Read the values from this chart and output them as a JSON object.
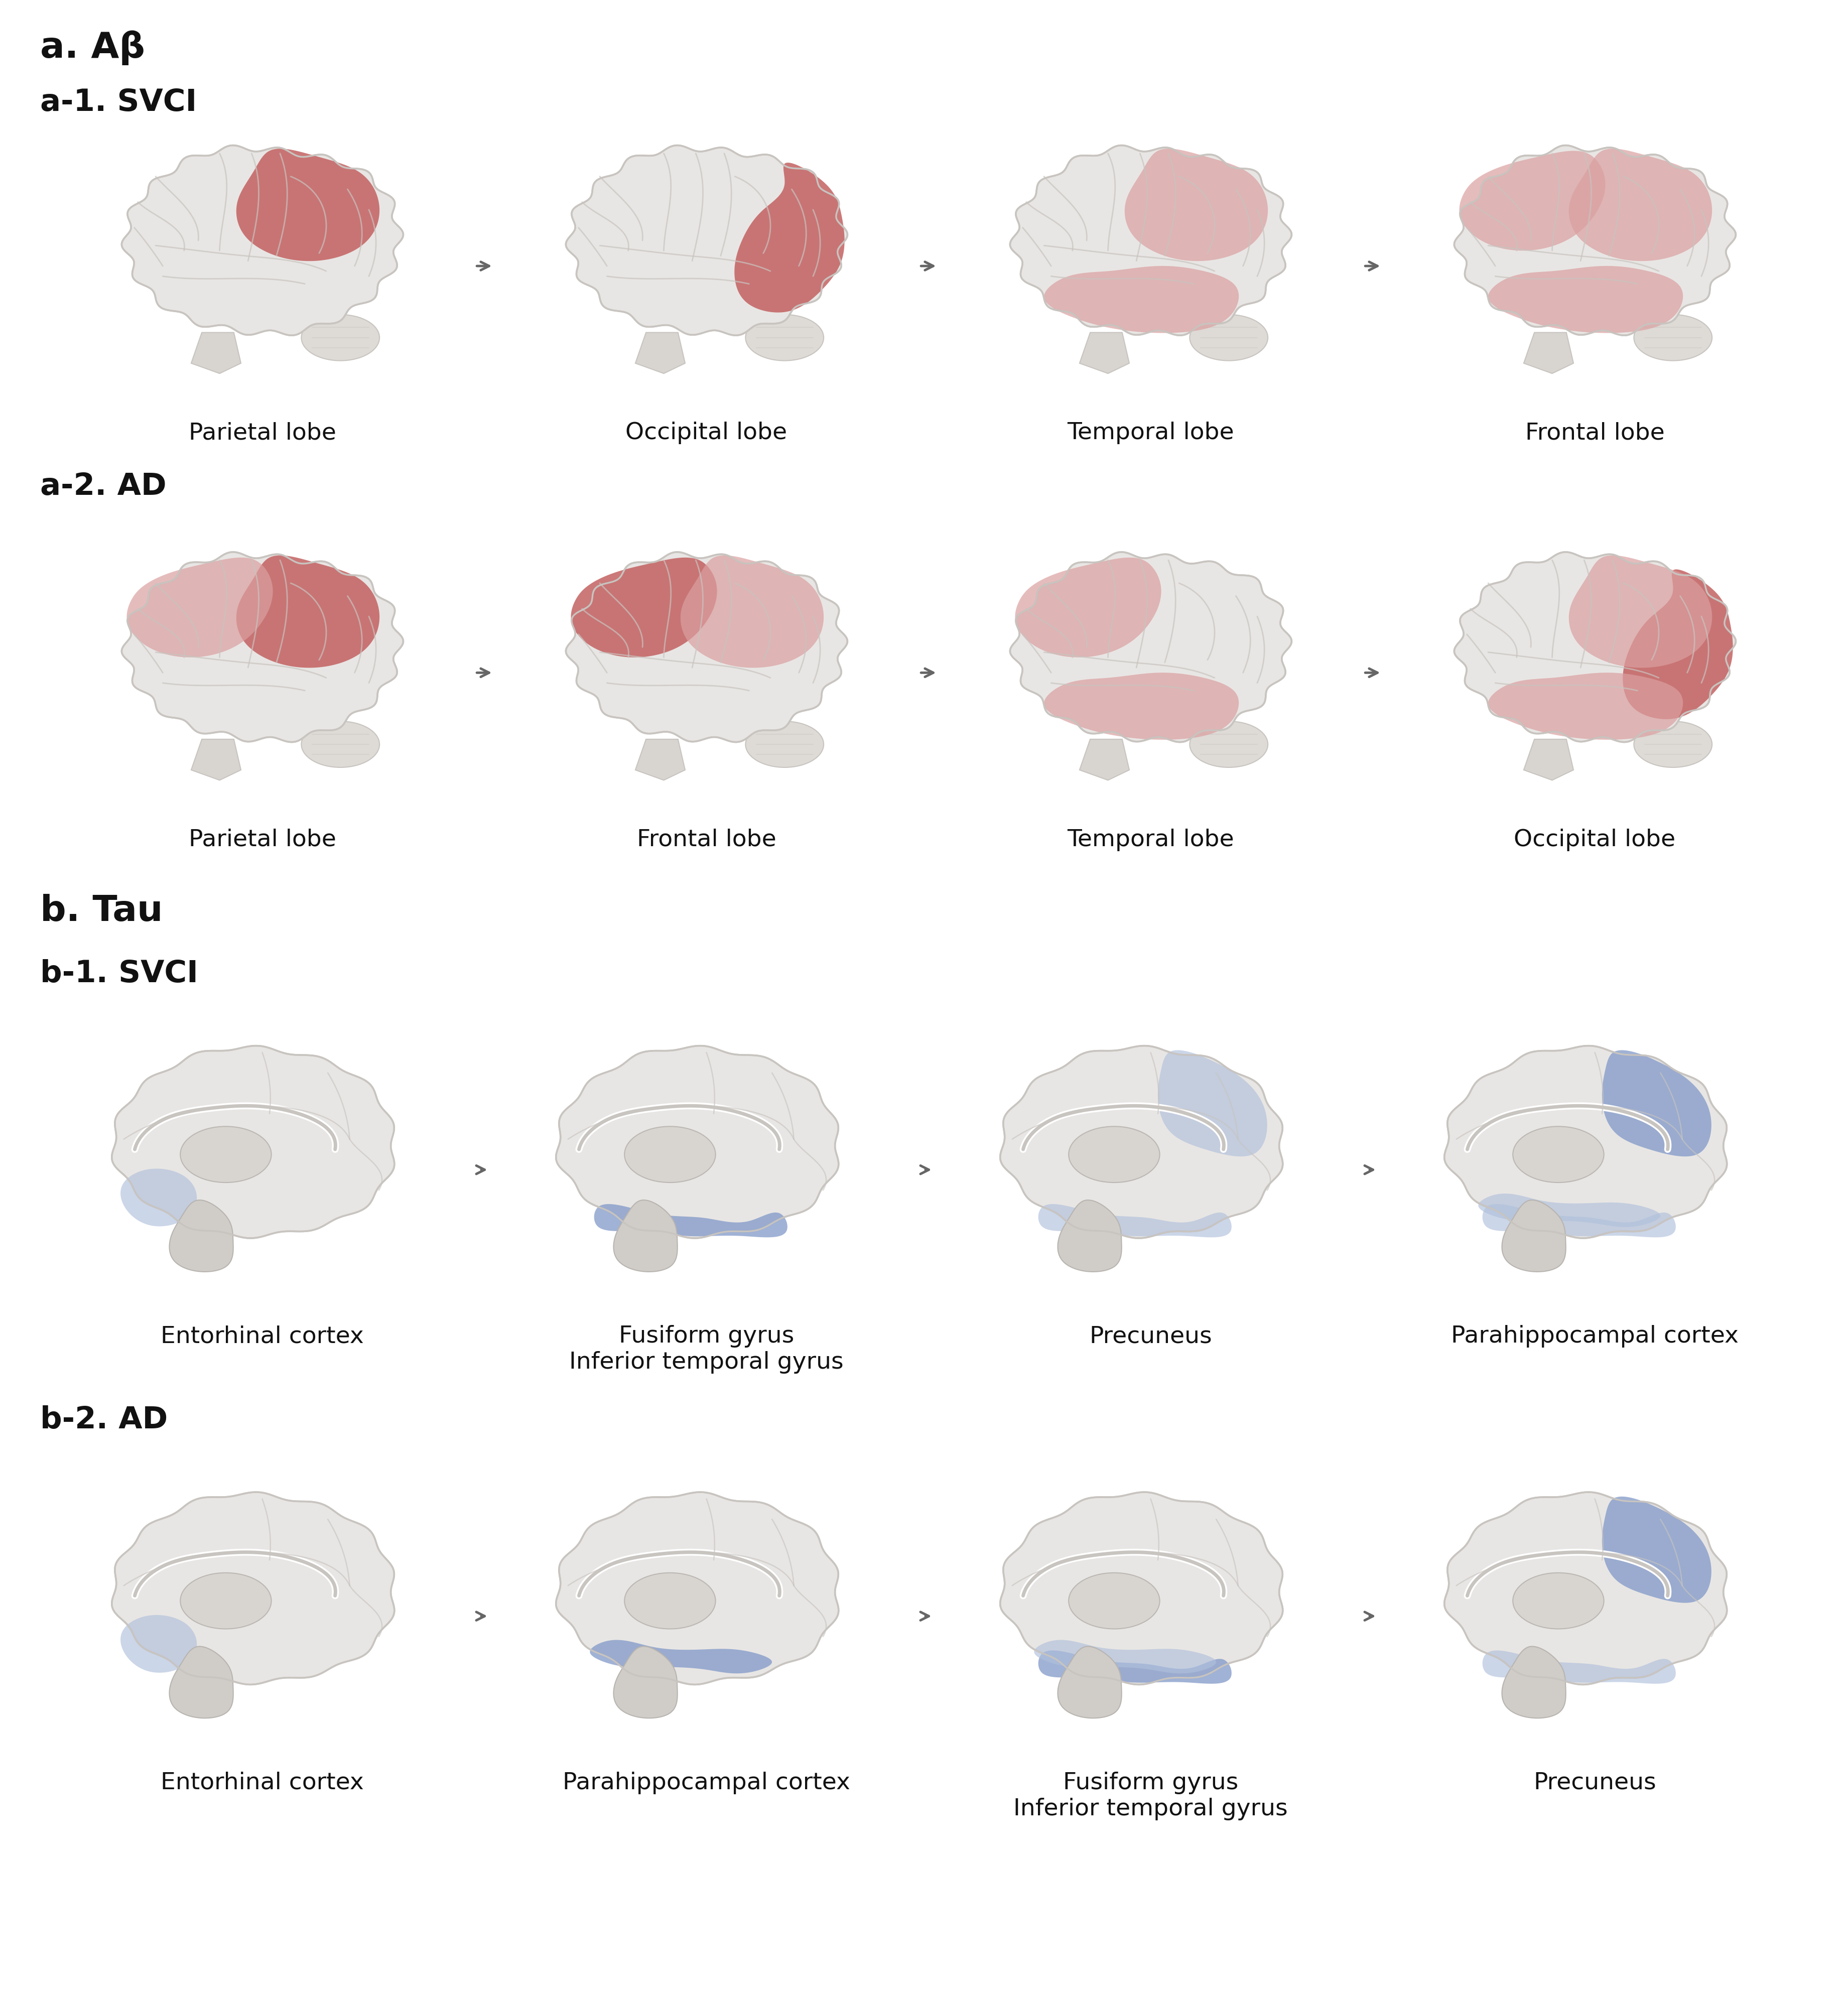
{
  "title_a": "a. Aβ",
  "title_b": "b. Tau",
  "subtitle_a1": "a-1. SVCI",
  "subtitle_a2": "a-2. AD",
  "subtitle_b1": "b-1. SVCI",
  "subtitle_b2": "b-2. AD",
  "row_a1_labels": [
    "Parietal lobe",
    "Occipital lobe",
    "Temporal lobe",
    "Frontal lobe"
  ],
  "row_a2_labels": [
    "Parietal lobe",
    "Frontal lobe",
    "Temporal lobe",
    "Occipital lobe"
  ],
  "row_b1_labels": [
    "Entorhinal cortex",
    "Fusiform gyrus\nInferior temporal gyrus",
    "Precuneus",
    "Parahippocampal cortex"
  ],
  "row_b2_labels": [
    "Entorhinal cortex",
    "Parahippocampal cortex",
    "Fusiform gyrus\nInferior temporal gyrus",
    "Precuneus"
  ],
  "bg_color": "#ffffff",
  "brain_base_color": "#e8e6e4",
  "brain_gyri_color": "#f0eeec",
  "brain_sulci_color": "#c8c4c0",
  "brain_shadow": "#d0ccc8",
  "highlight_red_dark": "#c05858",
  "highlight_red_light": "#dba0a0",
  "highlight_blue_dark": "#8098c8",
  "highlight_blue_light": "#b0c0dc",
  "arrow_color": "#666666",
  "text_color": "#111111",
  "title_fontsize": 52,
  "subtitle_fontsize": 44,
  "label_fontsize": 34
}
